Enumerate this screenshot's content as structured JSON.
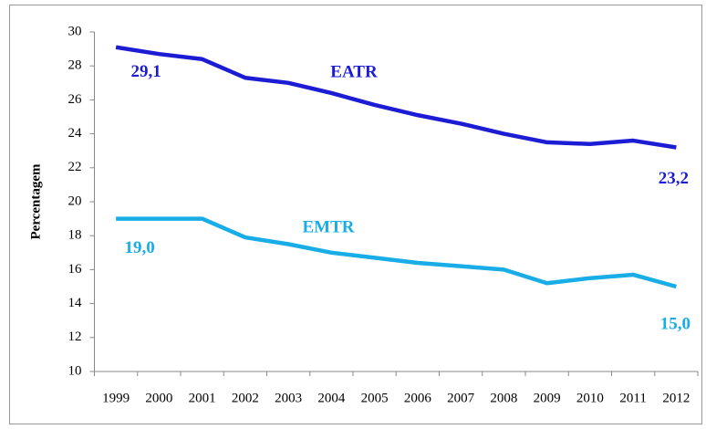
{
  "chart_data": {
    "type": "line",
    "y_label": "Percentagem",
    "categories": [
      "1999",
      "2000",
      "2001",
      "2002",
      "2003",
      "2004",
      "2005",
      "2006",
      "2007",
      "2008",
      "2009",
      "2010",
      "2011",
      "2012"
    ],
    "series": [
      {
        "name": "EATR",
        "color": "#1c1cd4",
        "values": [
          29.1,
          28.7,
          28.4,
          27.3,
          27.0,
          26.4,
          25.7,
          25.1,
          24.6,
          24.0,
          23.5,
          23.4,
          23.6,
          23.2
        ],
        "value_labels": [
          "29,1",
          null,
          null,
          null,
          null,
          null,
          null,
          null,
          null,
          null,
          null,
          null,
          null,
          "23,2"
        ]
      },
      {
        "name": "EMTR",
        "color": "#18ade6",
        "values": [
          19.0,
          19.0,
          19.0,
          17.9,
          17.5,
          17.0,
          16.7,
          16.4,
          16.2,
          16.0,
          15.2,
          15.5,
          15.7,
          15.0
        ],
        "value_labels": [
          "19,0",
          null,
          null,
          null,
          null,
          null,
          null,
          null,
          null,
          null,
          null,
          null,
          null,
          "15,0"
        ]
      }
    ],
    "ylim": [
      10,
      30
    ],
    "yticks": [
      10,
      12,
      14,
      16,
      18,
      20,
      22,
      24,
      26,
      28,
      30
    ]
  }
}
